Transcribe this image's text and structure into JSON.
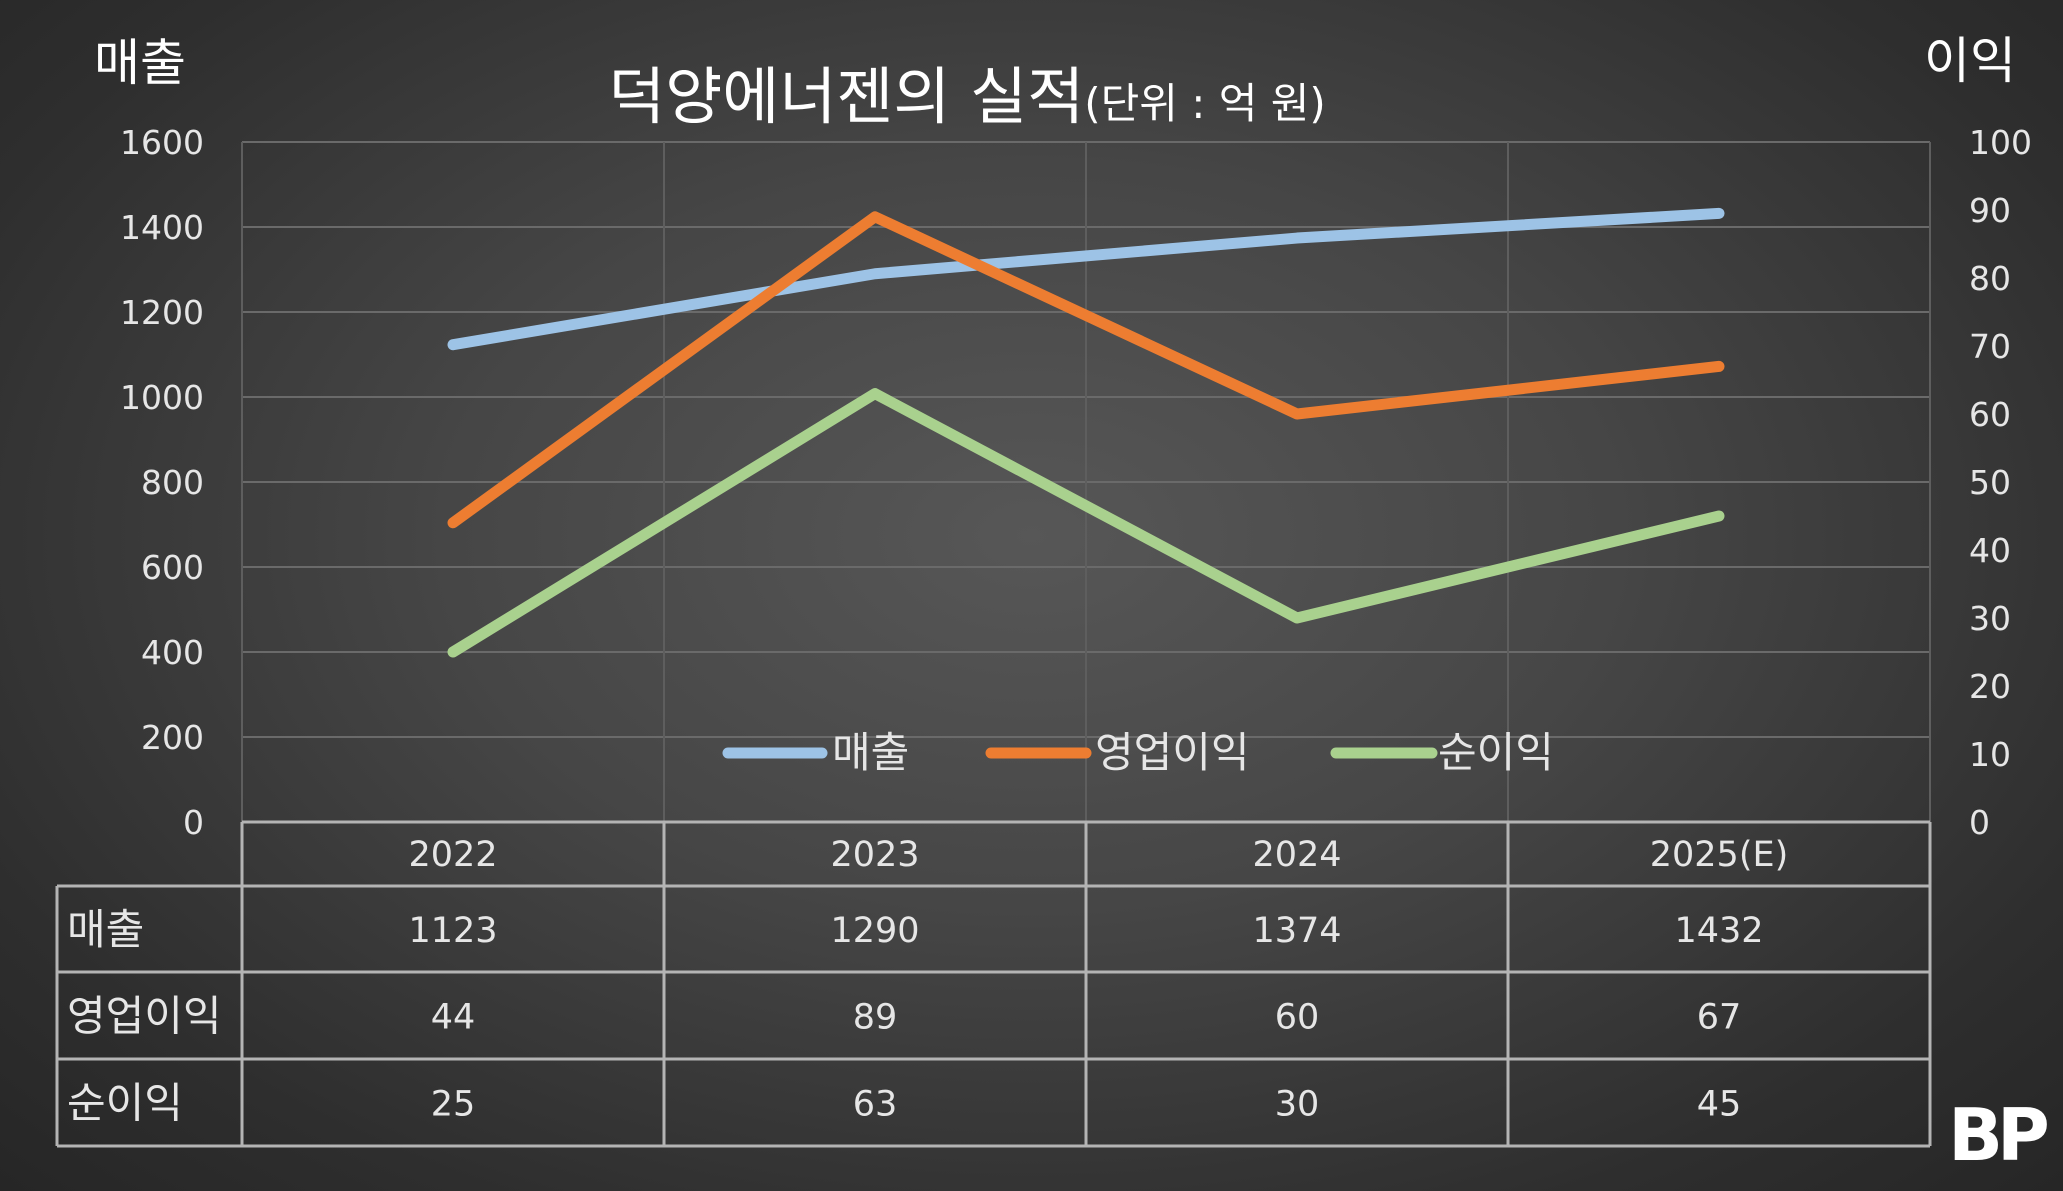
{
  "chart_data": {
    "type": "line",
    "title": "덕양에너젠의 실적",
    "subtitle": "(단위 : 억 원)",
    "ylabel_left": "매출",
    "ylabel_right": "이익",
    "categories": [
      "2022",
      "2023",
      "2024",
      "2025(E)"
    ],
    "ylim_left": [
      0,
      1600
    ],
    "ylim_right": [
      0,
      100
    ],
    "yticks_left": [
      "0",
      "200",
      "400",
      "600",
      "800",
      "1000",
      "1200",
      "1400",
      "1600"
    ],
    "yticks_right": [
      "0",
      "10",
      "20",
      "30",
      "40",
      "50",
      "60",
      "70",
      "80",
      "90",
      "100"
    ],
    "grid": true,
    "legend_position": "bottom-center",
    "series": [
      {
        "name": "매출",
        "axis": "left",
        "color": "#9dc3e6",
        "values": [
          1123,
          1290,
          1374,
          1432
        ]
      },
      {
        "name": "영업이익",
        "axis": "right",
        "color": "#ed7d31",
        "values": [
          44,
          89,
          60,
          67
        ]
      },
      {
        "name": "순이익",
        "axis": "right",
        "color": "#a9d18e",
        "values": [
          25,
          63,
          30,
          45
        ]
      }
    ],
    "data_table": true
  },
  "logo": {
    "text": "BP"
  }
}
